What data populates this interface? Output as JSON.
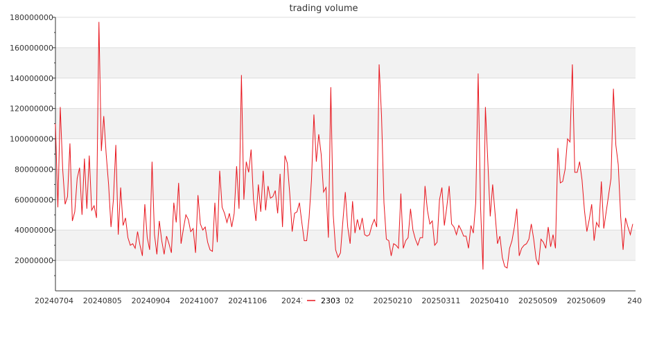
{
  "chart_data": {
    "type": "line",
    "title": "trading volume",
    "xlabel": "",
    "ylabel": "",
    "ylim": [
      0,
      180000000
    ],
    "yticks": [
      20000000,
      40000000,
      60000000,
      80000000,
      100000000,
      120000000,
      140000000,
      160000000,
      180000000
    ],
    "ytick_labels": [
      "20000000",
      "40000000",
      "60000000",
      "80000000",
      "100000000",
      "120000000",
      "140000000",
      "160000000",
      "180000000"
    ],
    "xtick_labels": [
      "20240704",
      "20240805",
      "20240904",
      "20241007",
      "20241106",
      "202412",
      "0102",
      "20250210",
      "20250311",
      "20250410",
      "20250509",
      "20250609",
      "240"
    ],
    "legend_position": "bottom-center",
    "colors": {
      "line": "#e8141c",
      "band": "#f2f2f2",
      "grid": "#dddddd",
      "axis": "#333333"
    },
    "series": [
      {
        "name": "2303",
        "values": [
          110000000,
          55000000,
          121000000,
          80000000,
          57000000,
          62000000,
          97000000,
          46000000,
          52000000,
          74000000,
          81000000,
          50000000,
          87000000,
          54000000,
          89000000,
          53000000,
          56000000,
          48000000,
          177000000,
          92000000,
          115000000,
          90000000,
          70000000,
          42000000,
          60000000,
          96000000,
          37000000,
          68000000,
          43000000,
          48000000,
          35000000,
          30000000,
          31000000,
          28000000,
          39000000,
          30000000,
          23000000,
          57000000,
          35000000,
          27000000,
          85000000,
          37000000,
          24000000,
          46000000,
          33000000,
          24000000,
          36000000,
          31000000,
          25000000,
          58000000,
          45000000,
          71000000,
          31000000,
          41000000,
          50000000,
          47000000,
          39000000,
          41000000,
          25000000,
          63000000,
          44000000,
          40000000,
          42000000,
          32000000,
          27000000,
          26000000,
          58000000,
          32000000,
          79000000,
          55000000,
          51000000,
          45000000,
          51000000,
          42000000,
          51000000,
          82000000,
          54000000,
          142000000,
          60000000,
          85000000,
          78000000,
          93000000,
          60000000,
          46000000,
          70000000,
          52000000,
          79000000,
          53000000,
          69000000,
          61000000,
          62000000,
          66000000,
          51000000,
          77000000,
          42000000,
          89000000,
          84000000,
          64000000,
          39000000,
          51000000,
          52000000,
          58000000,
          45000000,
          33000000,
          33000000,
          48000000,
          73000000,
          116000000,
          85000000,
          103000000,
          90000000,
          65000000,
          68000000,
          35000000,
          134000000,
          50000000,
          27000000,
          22000000,
          25000000,
          46000000,
          65000000,
          42000000,
          31000000,
          59000000,
          38000000,
          47000000,
          40000000,
          48000000,
          37000000,
          36000000,
          37000000,
          43000000,
          47000000,
          42000000,
          149000000,
          115000000,
          58000000,
          34000000,
          33000000,
          23000000,
          31000000,
          30000000,
          28000000,
          64000000,
          28000000,
          33000000,
          35000000,
          54000000,
          40000000,
          34000000,
          30000000,
          35000000,
          35000000,
          69000000,
          53000000,
          44000000,
          46000000,
          30000000,
          32000000,
          60000000,
          68000000,
          43000000,
          55000000,
          69000000,
          44000000,
          42000000,
          37000000,
          43000000,
          40000000,
          36000000,
          36000000,
          28000000,
          43000000,
          38000000,
          58000000,
          143000000,
          55000000,
          14000000,
          121000000,
          85000000,
          49000000,
          70000000,
          51000000,
          31000000,
          36000000,
          22000000,
          16000000,
          15000000,
          28000000,
          33000000,
          42000000,
          54000000,
          23000000,
          28000000,
          30000000,
          31000000,
          34000000,
          44000000,
          34000000,
          21000000,
          17000000,
          34000000,
          32000000,
          28000000,
          42000000,
          29000000,
          37000000,
          28000000,
          94000000,
          71000000,
          72000000,
          80000000,
          100000000,
          98000000,
          149000000,
          78000000,
          78000000,
          85000000,
          73000000,
          53000000,
          39000000,
          47000000,
          57000000,
          33000000,
          45000000,
          42000000,
          72000000,
          41000000,
          52000000,
          63000000,
          74000000,
          133000000,
          96000000,
          83000000,
          49000000,
          27000000,
          48000000,
          42000000,
          37000000,
          44000000
        ]
      }
    ]
  }
}
